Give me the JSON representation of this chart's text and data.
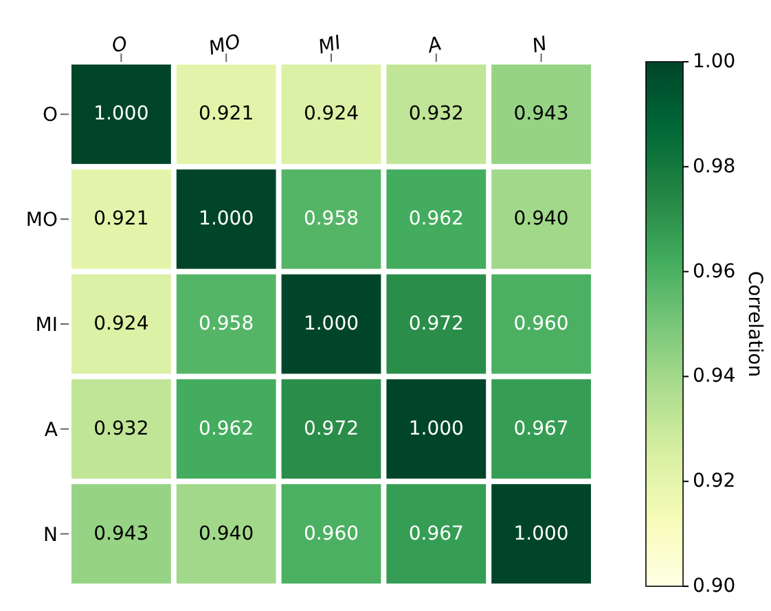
{
  "chart_data": {
    "type": "heatmap",
    "categories": [
      "O",
      "MO",
      "MI",
      "A",
      "N"
    ],
    "y_categories": [
      "O",
      "MO",
      "MI",
      "A",
      "N"
    ],
    "cells": [
      [
        1.0,
        0.921,
        0.924,
        0.932,
        0.943
      ],
      [
        0.921,
        1.0,
        0.958,
        0.962,
        0.94
      ],
      [
        0.924,
        0.958,
        1.0,
        0.972,
        0.96
      ],
      [
        0.932,
        0.962,
        0.972,
        1.0,
        0.967
      ],
      [
        0.943,
        0.94,
        0.96,
        0.967,
        1.0
      ]
    ],
    "cell_labels": [
      [
        "1.000",
        "0.921",
        "0.924",
        "0.932",
        "0.943"
      ],
      [
        "0.921",
        "1.000",
        "0.958",
        "0.962",
        "0.940"
      ],
      [
        "0.924",
        "0.958",
        "1.000",
        "0.972",
        "0.960"
      ],
      [
        "0.932",
        "0.962",
        "0.972",
        "1.000",
        "0.967"
      ],
      [
        "0.943",
        "0.940",
        "0.960",
        "0.967",
        "1.000"
      ]
    ],
    "clim": [
      0.9,
      1.0
    ],
    "cticks": [
      {
        "value": 0.9,
        "label": "0.90"
      },
      {
        "value": 0.92,
        "label": "0.92"
      },
      {
        "value": 0.94,
        "label": "0.94"
      },
      {
        "value": 0.96,
        "label": "0.96"
      },
      {
        "value": 0.98,
        "label": "0.98"
      },
      {
        "value": 1.0,
        "label": "1.00"
      }
    ],
    "clabel": "Correlation"
  }
}
